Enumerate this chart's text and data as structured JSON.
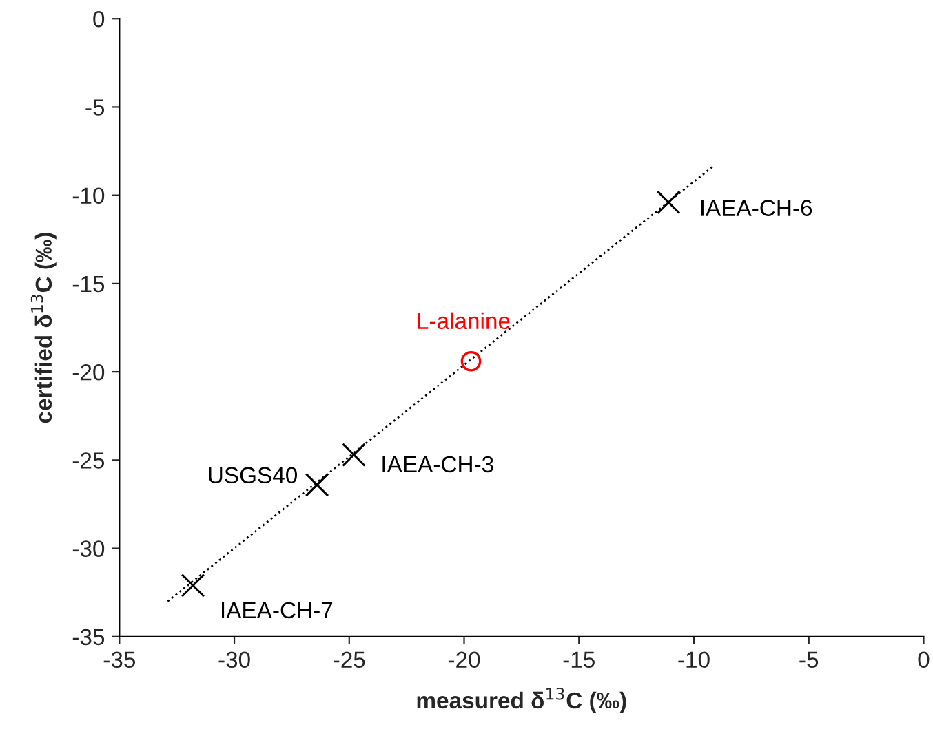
{
  "chart_data": {
    "type": "scatter",
    "xlabel": "measured δ$^{13}$C (‰)",
    "ylabel": "certified δ$^{13}$C (‰)",
    "xlim": [
      -35,
      0
    ],
    "ylim": [
      -35,
      0
    ],
    "xticks": [
      -35,
      -30,
      -25,
      -20,
      -15,
      -10,
      -5,
      0
    ],
    "yticks": [
      -35,
      -30,
      -25,
      -20,
      -15,
      -10,
      -5,
      0
    ],
    "grid": false,
    "legend": false,
    "series": [
      {
        "marker": "cross",
        "color": "#000000",
        "x": [
          -31.8,
          -26.4,
          -24.8,
          -11.1
        ],
        "values": [
          -32.1,
          -26.4,
          -24.7,
          -10.4
        ]
      },
      {
        "marker": "circle",
        "color": "#ff0000",
        "x": [
          -19.7
        ],
        "values": [
          -19.4
        ]
      },
      {
        "type": "line",
        "line_style": "dotted",
        "color": "#000000",
        "x": [
          -32.9,
          -9.2
        ],
        "values": [
          -33.0,
          -8.4
        ]
      }
    ],
    "annotations": [
      {
        "text": "IAEA-CH-7",
        "x": -31.8,
        "y": -32.1
      },
      {
        "text": "USGS40",
        "x": -26.4,
        "y": -26.4
      },
      {
        "text": "IAEA-CH-3",
        "x": -24.8,
        "y": -24.7
      },
      {
        "text": "IAEA-CH-6",
        "x": -11.1,
        "y": -10.4
      },
      {
        "text": "L-alanine",
        "x": -19.7,
        "y": -19.4
      }
    ]
  }
}
